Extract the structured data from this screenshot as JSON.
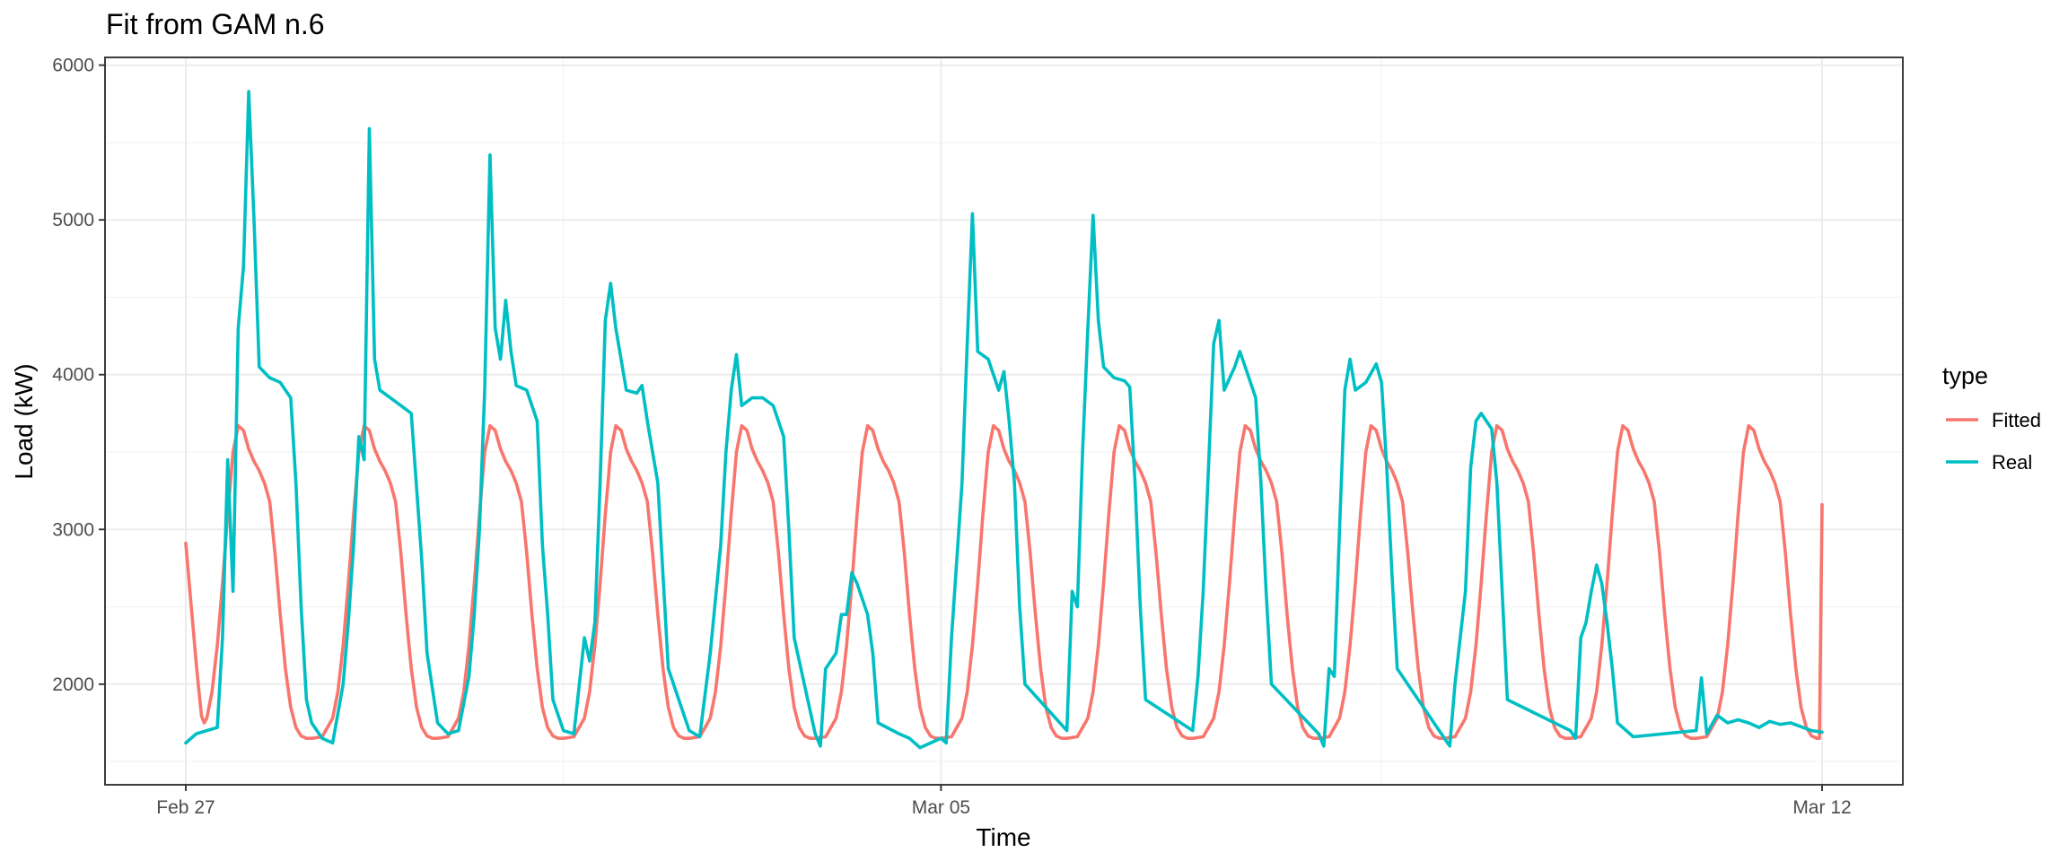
{
  "chart_data": {
    "type": "line",
    "title": "Fit from GAM n.6",
    "xlabel": "Time",
    "ylabel": "Load (kW)",
    "x_start": "2025-02-27",
    "x_end": "2025-03-12",
    "x_ticks": [
      {
        "label": "Feb 27",
        "date": "2025-02-27"
      },
      {
        "label": "Mar 05",
        "date": "2025-03-05"
      },
      {
        "label": "Mar 12",
        "date": "2025-03-12"
      }
    ],
    "y_ticks": [
      2000,
      3000,
      4000,
      5000,
      6000
    ],
    "ylim": [
      1350,
      6050
    ],
    "grid": true,
    "legend": {
      "title": "type",
      "position": "right"
    },
    "series": [
      {
        "name": "Fitted",
        "color": "#F8766D",
        "profile": {
          "base": 1650,
          "peak": 3670,
          "shape_hours": [
            0,
            2,
            4,
            5,
            6,
            7,
            8,
            9,
            10,
            11,
            12,
            13,
            14,
            15,
            16,
            17,
            18,
            19,
            20,
            21,
            22,
            23,
            24
          ],
          "shape_values": [
            1650,
            1660,
            1780,
            1950,
            2250,
            2650,
            3100,
            3500,
            3670,
            3640,
            3520,
            3440,
            3380,
            3300,
            3180,
            2850,
            2450,
            2100,
            1850,
            1720,
            1665,
            1650,
            1650
          ]
        },
        "start_value": 2910,
        "end_value": 3160
      },
      {
        "name": "Real",
        "color": "#00BFC4",
        "points": [
          [
            "2025-02-27T00:00",
            1620
          ],
          [
            "2025-02-27T02:00",
            1680
          ],
          [
            "2025-02-27T04:00",
            1700
          ],
          [
            "2025-02-27T06:00",
            1720
          ],
          [
            "2025-02-27T07:00",
            2300
          ],
          [
            "2025-02-27T08:00",
            3450
          ],
          [
            "2025-02-27T09:00",
            2600
          ],
          [
            "2025-02-27T10:00",
            4300
          ],
          [
            "2025-02-27T11:00",
            4700
          ],
          [
            "2025-02-27T12:00",
            5830
          ],
          [
            "2025-02-27T13:00",
            5000
          ],
          [
            "2025-02-27T14:00",
            4050
          ],
          [
            "2025-02-27T16:00",
            3980
          ],
          [
            "2025-02-27T18:00",
            3950
          ],
          [
            "2025-02-27T20:00",
            3850
          ],
          [
            "2025-02-27T21:00",
            3300
          ],
          [
            "2025-02-27T22:00",
            2500
          ],
          [
            "2025-02-27T23:00",
            1900
          ],
          [
            "2025-02-28T00:00",
            1750
          ],
          [
            "2025-02-28T02:00",
            1650
          ],
          [
            "2025-02-28T04:00",
            1620
          ],
          [
            "2025-02-28T06:00",
            2000
          ],
          [
            "2025-02-28T07:00",
            2400
          ],
          [
            "2025-02-28T08:00",
            2900
          ],
          [
            "2025-02-28T09:00",
            3600
          ],
          [
            "2025-02-28T10:00",
            3450
          ],
          [
            "2025-02-28T11:00",
            5590
          ],
          [
            "2025-02-28T12:00",
            4100
          ],
          [
            "2025-02-28T13:00",
            3900
          ],
          [
            "2025-02-28T15:00",
            3850
          ],
          [
            "2025-02-28T17:00",
            3800
          ],
          [
            "2025-02-28T19:00",
            3750
          ],
          [
            "2025-02-28T21:00",
            2800
          ],
          [
            "2025-02-28T22:00",
            2200
          ],
          [
            "2025-03-01T00:00",
            1750
          ],
          [
            "2025-03-01T02:00",
            1680
          ],
          [
            "2025-03-01T04:00",
            1700
          ],
          [
            "2025-03-01T06:00",
            2050
          ],
          [
            "2025-03-01T07:00",
            2450
          ],
          [
            "2025-03-01T08:00",
            3000
          ],
          [
            "2025-03-01T09:00",
            3900
          ],
          [
            "2025-03-01T10:00",
            5420
          ],
          [
            "2025-03-01T11:00",
            4300
          ],
          [
            "2025-03-01T12:00",
            4100
          ],
          [
            "2025-03-01T13:00",
            4480
          ],
          [
            "2025-03-01T14:00",
            4150
          ],
          [
            "2025-03-01T15:00",
            3930
          ],
          [
            "2025-03-01T17:00",
            3900
          ],
          [
            "2025-03-01T19:00",
            3700
          ],
          [
            "2025-03-01T20:00",
            2900
          ],
          [
            "2025-03-01T21:00",
            2450
          ],
          [
            "2025-03-01T22:00",
            1900
          ],
          [
            "2025-03-02T00:00",
            1700
          ],
          [
            "2025-03-02T02:00",
            1680
          ],
          [
            "2025-03-02T04:00",
            2300
          ],
          [
            "2025-03-02T05:00",
            2150
          ],
          [
            "2025-03-02T06:00",
            2400
          ],
          [
            "2025-03-02T07:00",
            3300
          ],
          [
            "2025-03-02T08:00",
            4350
          ],
          [
            "2025-03-02T09:00",
            4590
          ],
          [
            "2025-03-02T10:00",
            4300
          ],
          [
            "2025-03-02T12:00",
            3900
          ],
          [
            "2025-03-02T14:00",
            3880
          ],
          [
            "2025-03-02T15:00",
            3930
          ],
          [
            "2025-03-02T16:00",
            3700
          ],
          [
            "2025-03-02T18:00",
            3300
          ],
          [
            "2025-03-02T19:00",
            2700
          ],
          [
            "2025-03-02T20:00",
            2100
          ],
          [
            "2025-03-03T00:00",
            1700
          ],
          [
            "2025-03-03T02:00",
            1660
          ],
          [
            "2025-03-03T04:00",
            2200
          ],
          [
            "2025-03-03T06:00",
            2900
          ],
          [
            "2025-03-03T07:00",
            3500
          ],
          [
            "2025-03-03T08:00",
            3900
          ],
          [
            "2025-03-03T09:00",
            4130
          ],
          [
            "2025-03-03T10:00",
            3800
          ],
          [
            "2025-03-03T12:00",
            3850
          ],
          [
            "2025-03-03T14:00",
            3850
          ],
          [
            "2025-03-03T16:00",
            3800
          ],
          [
            "2025-03-03T18:00",
            3600
          ],
          [
            "2025-03-03T19:00",
            3000
          ],
          [
            "2025-03-03T20:00",
            2300
          ],
          [
            "2025-03-04T00:00",
            1680
          ],
          [
            "2025-03-04T01:00",
            1600
          ],
          [
            "2025-03-04T02:00",
            2100
          ],
          [
            "2025-03-04T04:00",
            2200
          ],
          [
            "2025-03-04T05:00",
            2450
          ],
          [
            "2025-03-04T06:00",
            2450
          ],
          [
            "2025-03-04T07:00",
            2720
          ],
          [
            "2025-03-04T08:00",
            2650
          ],
          [
            "2025-03-04T10:00",
            2450
          ],
          [
            "2025-03-04T11:00",
            2200
          ],
          [
            "2025-03-04T12:00",
            1750
          ],
          [
            "2025-03-04T16:00",
            1680
          ],
          [
            "2025-03-04T18:00",
            1650
          ],
          [
            "2025-03-04T20:00",
            1590
          ],
          [
            "2025-03-05T00:00",
            1650
          ],
          [
            "2025-03-05T01:00",
            1620
          ],
          [
            "2025-03-05T02:00",
            2300
          ],
          [
            "2025-03-05T04:00",
            3300
          ],
          [
            "2025-03-05T05:00",
            4200
          ],
          [
            "2025-03-05T06:00",
            5040
          ],
          [
            "2025-03-05T07:00",
            4150
          ],
          [
            "2025-03-05T09:00",
            4100
          ],
          [
            "2025-03-05T11:00",
            3900
          ],
          [
            "2025-03-05T12:00",
            4020
          ],
          [
            "2025-03-05T13:00",
            3700
          ],
          [
            "2025-03-05T14:00",
            3300
          ],
          [
            "2025-03-05T15:00",
            2500
          ],
          [
            "2025-03-05T16:00",
            2000
          ],
          [
            "2025-03-06T00:00",
            1700
          ],
          [
            "2025-03-06T01:00",
            2600
          ],
          [
            "2025-03-06T02:00",
            2500
          ],
          [
            "2025-03-06T03:00",
            3500
          ],
          [
            "2025-03-06T04:00",
            4300
          ],
          [
            "2025-03-06T05:00",
            5030
          ],
          [
            "2025-03-06T06:00",
            4350
          ],
          [
            "2025-03-06T07:00",
            4050
          ],
          [
            "2025-03-06T09:00",
            3980
          ],
          [
            "2025-03-06T11:00",
            3960
          ],
          [
            "2025-03-06T12:00",
            3920
          ],
          [
            "2025-03-06T13:00",
            3300
          ],
          [
            "2025-03-06T14:00",
            2500
          ],
          [
            "2025-03-06T15:00",
            1900
          ],
          [
            "2025-03-07T00:00",
            1700
          ],
          [
            "2025-03-07T01:00",
            2050
          ],
          [
            "2025-03-07T02:00",
            2600
          ],
          [
            "2025-03-07T03:00",
            3400
          ],
          [
            "2025-03-07T04:00",
            4200
          ],
          [
            "2025-03-07T05:00",
            4350
          ],
          [
            "2025-03-07T06:00",
            3900
          ],
          [
            "2025-03-07T08:00",
            4050
          ],
          [
            "2025-03-07T09:00",
            4150
          ],
          [
            "2025-03-07T10:00",
            4050
          ],
          [
            "2025-03-07T12:00",
            3850
          ],
          [
            "2025-03-07T13:00",
            3300
          ],
          [
            "2025-03-07T14:00",
            2600
          ],
          [
            "2025-03-07T15:00",
            2000
          ],
          [
            "2025-03-08T00:00",
            1680
          ],
          [
            "2025-03-08T01:00",
            1600
          ],
          [
            "2025-03-08T02:00",
            2100
          ],
          [
            "2025-03-08T03:00",
            2050
          ],
          [
            "2025-03-08T04:00",
            3000
          ],
          [
            "2025-03-08T05:00",
            3900
          ],
          [
            "2025-03-08T06:00",
            4100
          ],
          [
            "2025-03-08T07:00",
            3900
          ],
          [
            "2025-03-08T09:00",
            3950
          ],
          [
            "2025-03-08T11:00",
            4070
          ],
          [
            "2025-03-08T12:00",
            3950
          ],
          [
            "2025-03-08T13:00",
            3400
          ],
          [
            "2025-03-08T14:00",
            2700
          ],
          [
            "2025-03-08T15:00",
            2100
          ],
          [
            "2025-03-09T00:00",
            1650
          ],
          [
            "2025-03-09T01:00",
            1600
          ],
          [
            "2025-03-09T02:00",
            2000
          ],
          [
            "2025-03-09T04:00",
            2600
          ],
          [
            "2025-03-09T05:00",
            3400
          ],
          [
            "2025-03-09T06:00",
            3700
          ],
          [
            "2025-03-09T07:00",
            3750
          ],
          [
            "2025-03-09T09:00",
            3650
          ],
          [
            "2025-03-09T10:00",
            3300
          ],
          [
            "2025-03-09T11:00",
            2600
          ],
          [
            "2025-03-09T12:00",
            1900
          ],
          [
            "2025-03-10T00:00",
            1700
          ],
          [
            "2025-03-10T01:00",
            1650
          ],
          [
            "2025-03-10T02:00",
            2300
          ],
          [
            "2025-03-10T03:00",
            2400
          ],
          [
            "2025-03-10T04:00",
            2600
          ],
          [
            "2025-03-10T05:00",
            2770
          ],
          [
            "2025-03-10T06:00",
            2650
          ],
          [
            "2025-03-10T07:00",
            2400
          ],
          [
            "2025-03-10T08:00",
            2100
          ],
          [
            "2025-03-10T09:00",
            1750
          ],
          [
            "2025-03-10T12:00",
            1660
          ],
          [
            "2025-03-11T00:00",
            1700
          ],
          [
            "2025-03-11T01:00",
            2040
          ],
          [
            "2025-03-11T02:00",
            1680
          ],
          [
            "2025-03-11T04:00",
            1800
          ],
          [
            "2025-03-11T06:00",
            1750
          ],
          [
            "2025-03-11T08:00",
            1770
          ],
          [
            "2025-03-11T10:00",
            1750
          ],
          [
            "2025-03-11T12:00",
            1720
          ],
          [
            "2025-03-11T14:00",
            1760
          ],
          [
            "2025-03-11T16:00",
            1740
          ],
          [
            "2025-03-11T18:00",
            1750
          ],
          [
            "2025-03-11T22:00",
            1700
          ],
          [
            "2025-03-12T00:00",
            1690
          ]
        ]
      }
    ]
  }
}
